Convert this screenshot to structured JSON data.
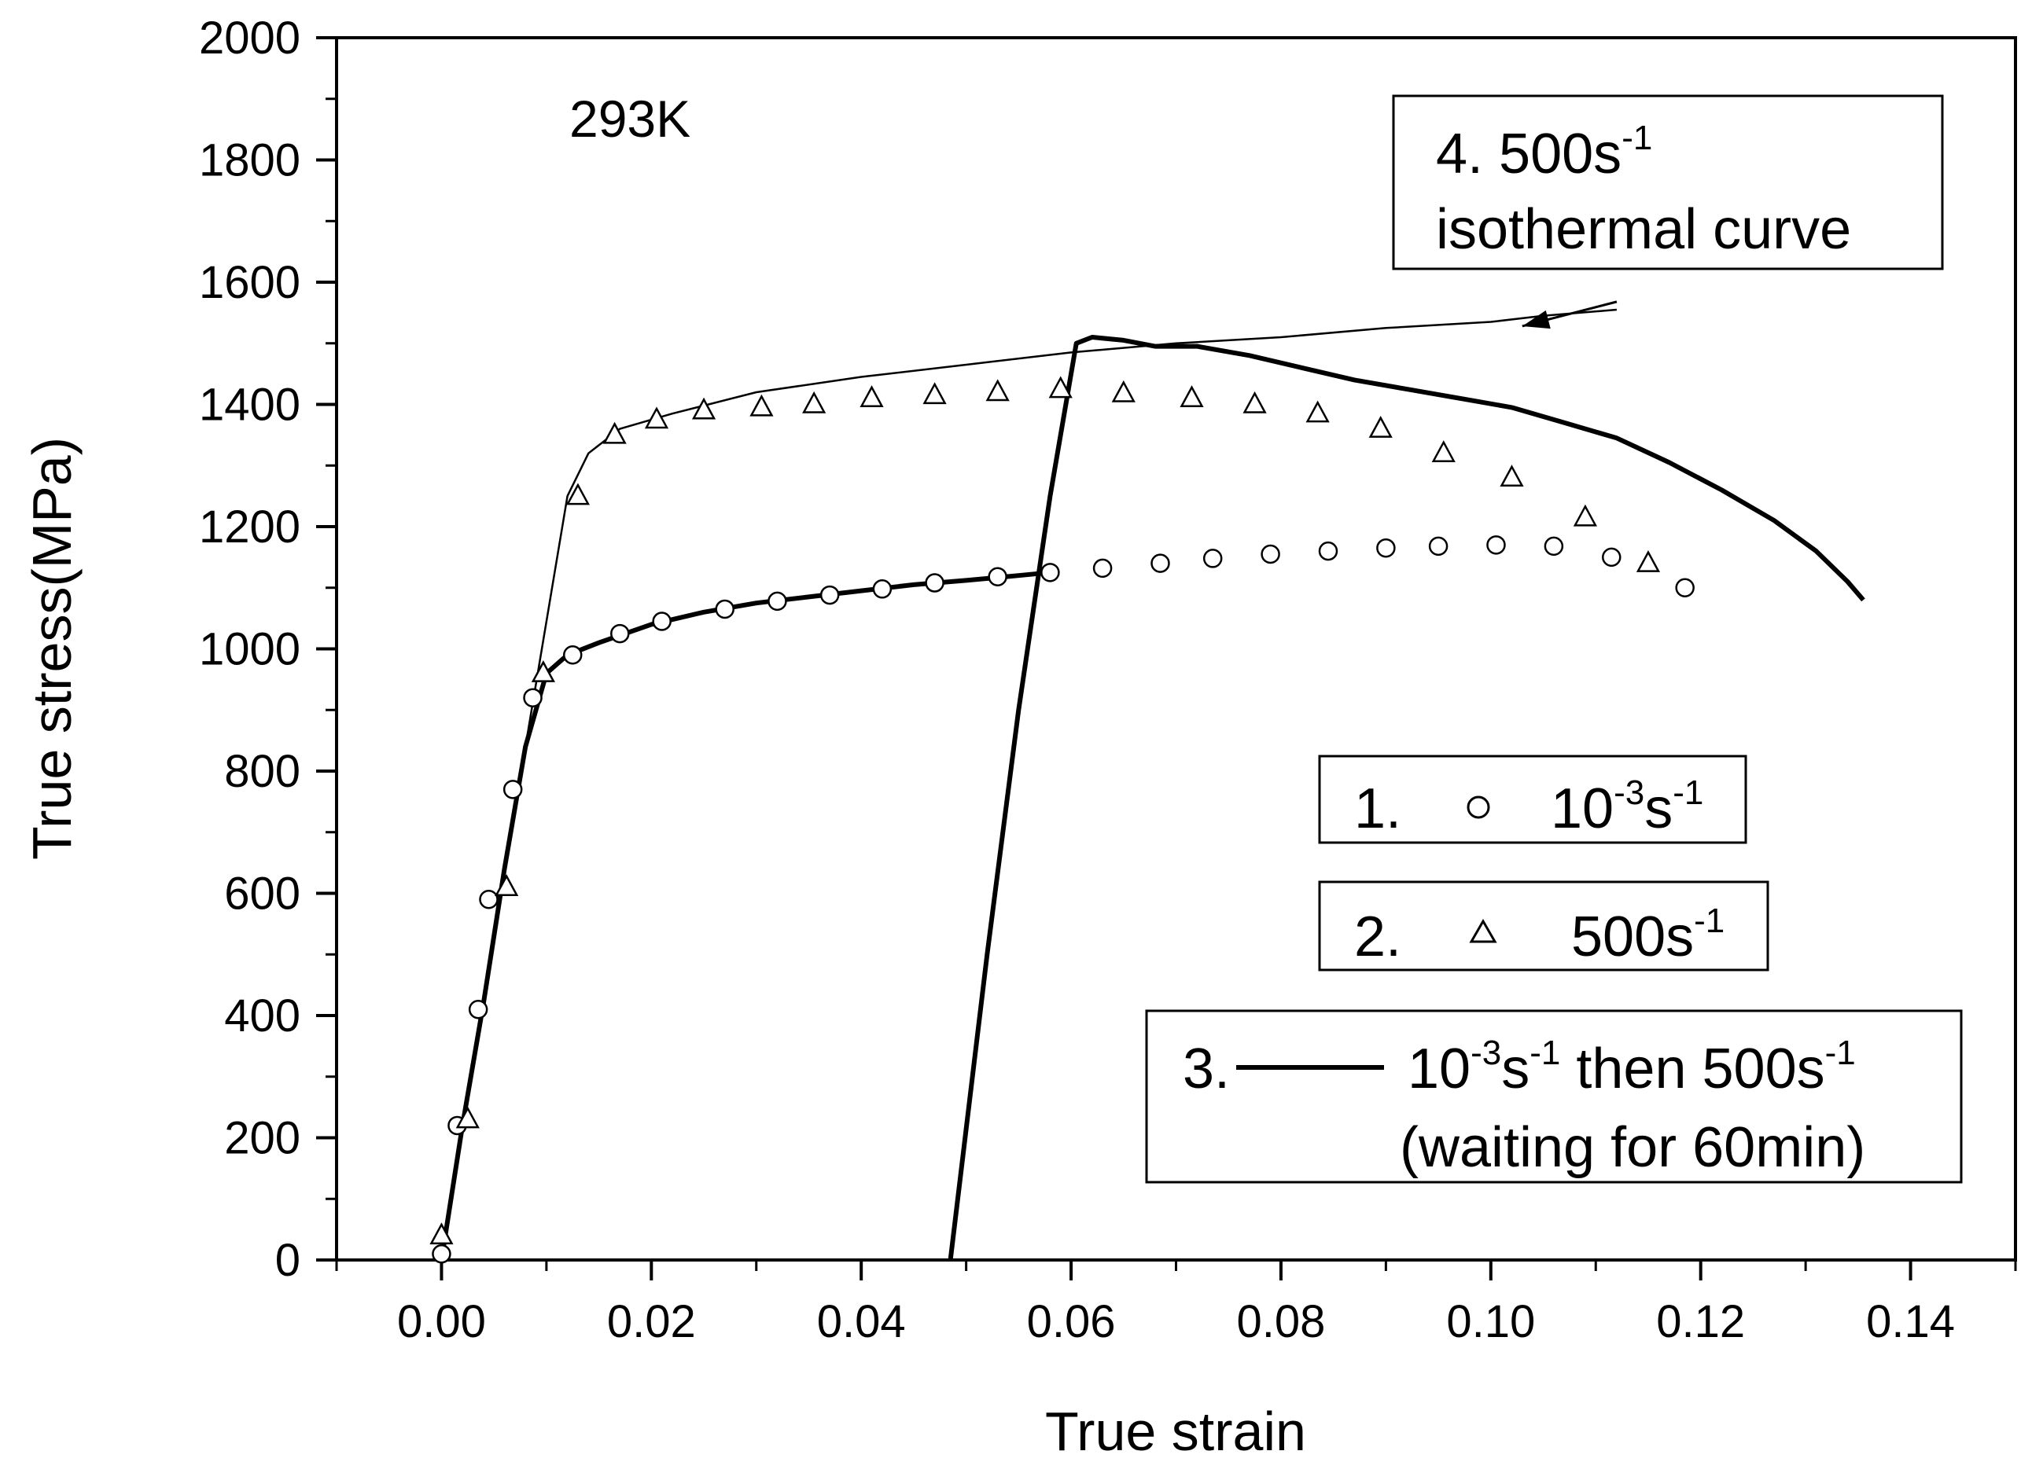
{
  "chart_data": {
    "type": "scatter",
    "xlabel": "True strain",
    "ylabel": "True stress(MPa)",
    "xlim": [
      -0.01,
      0.15
    ],
    "ylim": [
      0,
      2000
    ],
    "x_ticks": [
      0.0,
      0.02,
      0.04,
      0.06,
      0.08,
      0.1,
      0.12,
      0.14
    ],
    "x_tick_labels": [
      "0.00",
      "0.02",
      "0.04",
      "0.06",
      "0.08",
      "0.10",
      "0.12",
      "0.14"
    ],
    "y_ticks": [
      0,
      200,
      400,
      600,
      800,
      1000,
      1200,
      1400,
      1600,
      1800,
      2000
    ],
    "y_tick_labels": [
      "0",
      "200",
      "400",
      "600",
      "800",
      "1000",
      "1200",
      "1400",
      "1600",
      "1800",
      "2000"
    ],
    "temperature_label": "293K",
    "grid": false,
    "series": [
      {
        "id": "s1",
        "name": "1. 10^-3 s^-1",
        "marker": "circle",
        "line": "thick",
        "line_points": [
          [
            0,
            0
          ],
          [
            0.002,
            220
          ],
          [
            0.004,
            420
          ],
          [
            0.006,
            640
          ],
          [
            0.008,
            840
          ],
          [
            0.01,
            960
          ],
          [
            0.012,
            990
          ],
          [
            0.015,
            1010
          ],
          [
            0.02,
            1040
          ],
          [
            0.025,
            1060
          ],
          [
            0.03,
            1075
          ],
          [
            0.035,
            1085
          ],
          [
            0.04,
            1095
          ],
          [
            0.045,
            1105
          ],
          [
            0.05,
            1112
          ],
          [
            0.055,
            1120
          ],
          [
            0.058,
            1125
          ]
        ],
        "markers": [
          [
            0,
            10
          ],
          [
            0.0015,
            220
          ],
          [
            0.0035,
            410
          ],
          [
            0.0045,
            590
          ],
          [
            0.0068,
            770
          ],
          [
            0.0087,
            920
          ],
          [
            0.0125,
            990
          ],
          [
            0.017,
            1025
          ],
          [
            0.021,
            1045
          ],
          [
            0.027,
            1065
          ],
          [
            0.032,
            1078
          ],
          [
            0.037,
            1088
          ],
          [
            0.042,
            1098
          ],
          [
            0.047,
            1108
          ],
          [
            0.053,
            1118
          ],
          [
            0.058,
            1125
          ],
          [
            0.063,
            1132
          ],
          [
            0.0685,
            1140
          ],
          [
            0.0735,
            1148
          ],
          [
            0.079,
            1155
          ],
          [
            0.0845,
            1160
          ],
          [
            0.09,
            1165
          ],
          [
            0.095,
            1168
          ],
          [
            0.1005,
            1170
          ],
          [
            0.106,
            1168
          ],
          [
            0.1115,
            1150
          ],
          [
            0.1185,
            1100
          ]
        ]
      },
      {
        "id": "s2",
        "name": "2. 500 s^-1",
        "marker": "triangle",
        "markers": [
          [
            0,
            40
          ],
          [
            0.0025,
            230
          ],
          [
            0.0062,
            610
          ],
          [
            0.0097,
            960
          ],
          [
            0.013,
            1250
          ],
          [
            0.0165,
            1350
          ],
          [
            0.0205,
            1375
          ],
          [
            0.025,
            1390
          ],
          [
            0.0305,
            1395
          ],
          [
            0.0355,
            1400
          ],
          [
            0.041,
            1410
          ],
          [
            0.047,
            1415
          ],
          [
            0.053,
            1420
          ],
          [
            0.059,
            1425
          ],
          [
            0.065,
            1418
          ],
          [
            0.0715,
            1410
          ],
          [
            0.0775,
            1400
          ],
          [
            0.0835,
            1385
          ],
          [
            0.0895,
            1360
          ],
          [
            0.0955,
            1320
          ],
          [
            0.102,
            1280
          ],
          [
            0.109,
            1215
          ],
          [
            0.115,
            1140
          ]
        ]
      },
      {
        "id": "s3",
        "name": "3. 10^-3 s^-1 then 500 s^-1 (waiting for 60min)",
        "marker": "none",
        "line": "thick",
        "line_points": [
          [
            0.0485,
            0
          ],
          [
            0.052,
            500
          ],
          [
            0.055,
            900
          ],
          [
            0.058,
            1250
          ],
          [
            0.0605,
            1500
          ],
          [
            0.062,
            1510
          ],
          [
            0.065,
            1505
          ],
          [
            0.068,
            1495
          ],
          [
            0.072,
            1495
          ],
          [
            0.077,
            1480
          ],
          [
            0.082,
            1460
          ],
          [
            0.087,
            1440
          ],
          [
            0.092,
            1425
          ],
          [
            0.097,
            1410
          ],
          [
            0.102,
            1395
          ],
          [
            0.107,
            1370
          ],
          [
            0.112,
            1345
          ],
          [
            0.117,
            1305
          ],
          [
            0.122,
            1260
          ],
          [
            0.127,
            1210
          ],
          [
            0.131,
            1160
          ],
          [
            0.134,
            1110
          ],
          [
            0.1355,
            1080
          ]
        ]
      },
      {
        "id": "s4",
        "name": "4. 500 s^-1 isothermal curve",
        "marker": "none",
        "line": "thin",
        "line_points": [
          [
            0,
            0
          ],
          [
            0.004,
            420
          ],
          [
            0.008,
            840
          ],
          [
            0.012,
            1250
          ],
          [
            0.014,
            1320
          ],
          [
            0.017,
            1360
          ],
          [
            0.022,
            1385
          ],
          [
            0.03,
            1420
          ],
          [
            0.04,
            1445
          ],
          [
            0.05,
            1465
          ],
          [
            0.06,
            1485
          ],
          [
            0.07,
            1500
          ],
          [
            0.08,
            1510
          ],
          [
            0.09,
            1525
          ],
          [
            0.1,
            1535
          ],
          [
            0.105,
            1545
          ],
          [
            0.112,
            1555
          ]
        ]
      }
    ],
    "annotations": {
      "isothermal_box": {
        "line1_prefix": "4. 500s",
        "line1_sup": "-1",
        "line2": "isothermal curve"
      },
      "arrow_from": [
        0.112,
        1568
      ],
      "arrow_to": [
        0.103,
        1528
      ]
    },
    "legend": {
      "item1": {
        "number": "1.",
        "rate_base": "10",
        "rate_exp1": "-3",
        "rate_unit": "s",
        "rate_exp2": "-1"
      },
      "item2": {
        "number": "2.",
        "rate_base": "500s",
        "rate_exp": "-1"
      },
      "item3": {
        "number": "3.",
        "part1_base": "10",
        "part1_exp1": "-3",
        "part1_unit": "s",
        "part1_exp2": "-1",
        "part2": " then 500s",
        "part2_exp": "-1",
        "line2": "(waiting for 60min)"
      }
    }
  }
}
